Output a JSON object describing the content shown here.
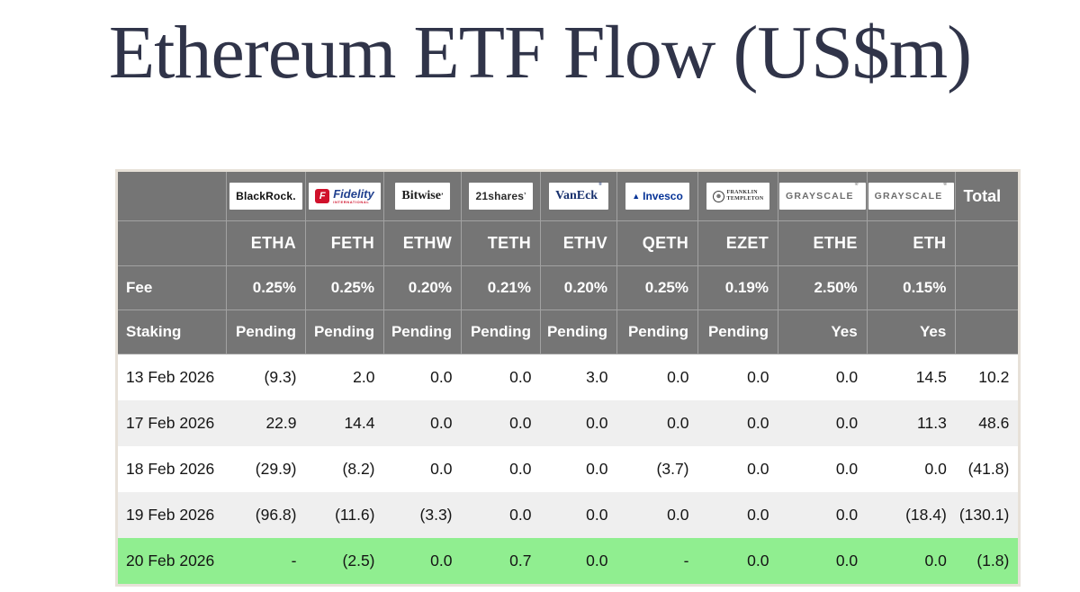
{
  "title": "Ethereum ETF Flow (US$m)",
  "colors": {
    "title_navy": "#303449",
    "header_gray": "#757575",
    "highlight_green": "#90ee90",
    "negative_red": "#ff0000",
    "stripe_gray": "#efefef",
    "table_border": "#e7e1d8",
    "fidelity_red": "#d0112b",
    "fidelity_blue": "#21418f",
    "vaneck_navy": "#18316e",
    "invesco_navy": "#063397",
    "grayscale_gray": "#6e6e6e"
  },
  "table": {
    "total_label": "Total",
    "fee_label": "Fee",
    "staking_label": "Staking",
    "columns": [
      {
        "provider": "BlackRock",
        "logo": "blackrock",
        "logo_text": "BlackRock.",
        "ticker": "ETHA",
        "fee": "0.25%",
        "staking": "Pending"
      },
      {
        "provider": "Fidelity International",
        "logo": "fidelity",
        "logo_text": "Fidelity",
        "logo_subtext": "INTERNATIONAL",
        "ticker": "FETH",
        "fee": "0.25%",
        "staking": "Pending"
      },
      {
        "provider": "Bitwise",
        "logo": "bitwise",
        "logo_text": "Bitwise",
        "ticker": "ETHW",
        "fee": "0.20%",
        "staking": "Pending"
      },
      {
        "provider": "21shares",
        "logo": "shares21",
        "logo_text": "21shares",
        "ticker": "TETH",
        "fee": "0.21%",
        "staking": "Pending"
      },
      {
        "provider": "VanEck",
        "logo": "vaneck",
        "logo_text": "VanEck",
        "ticker": "ETHV",
        "fee": "0.20%",
        "staking": "Pending"
      },
      {
        "provider": "Invesco",
        "logo": "invesco",
        "logo_text": "Invesco",
        "ticker": "QETH",
        "fee": "0.25%",
        "staking": "Pending"
      },
      {
        "provider": "Franklin Templeton",
        "logo": "franklin",
        "logo_line1": "FRANKLIN",
        "logo_line2": "TEMPLETON",
        "ticker": "EZET",
        "fee": "0.19%",
        "staking": "Pending"
      },
      {
        "provider": "Grayscale",
        "logo": "grayscale",
        "logo_text": "GRAYSCALE",
        "ticker": "ETHE",
        "fee": "2.50%",
        "staking": "Yes"
      },
      {
        "provider": "Grayscale",
        "logo": "grayscale",
        "logo_text": "GRAYSCALE",
        "ticker": "ETH",
        "fee": "0.15%",
        "staking": "Yes"
      }
    ],
    "rows": [
      {
        "date": "13 Feb 2026",
        "values": [
          "(9.3)",
          "2.0",
          "0.0",
          "0.0",
          "3.0",
          "0.0",
          "0.0",
          "0.0",
          "14.5"
        ],
        "total": "10.2",
        "highlight": false
      },
      {
        "date": "17 Feb 2026",
        "values": [
          "22.9",
          "14.4",
          "0.0",
          "0.0",
          "0.0",
          "0.0",
          "0.0",
          "0.0",
          "11.3"
        ],
        "total": "48.6",
        "highlight": false
      },
      {
        "date": "18 Feb 2026",
        "values": [
          "(29.9)",
          "(8.2)",
          "0.0",
          "0.0",
          "0.0",
          "(3.7)",
          "0.0",
          "0.0",
          "0.0"
        ],
        "total": "(41.8)",
        "highlight": false
      },
      {
        "date": "19 Feb 2026",
        "values": [
          "(96.8)",
          "(11.6)",
          "(3.3)",
          "0.0",
          "0.0",
          "0.0",
          "0.0",
          "0.0",
          "(18.4)"
        ],
        "total": "(130.1)",
        "highlight": false
      },
      {
        "date": "20 Feb 2026",
        "values": [
          "-",
          "(2.5)",
          "0.0",
          "0.7",
          "0.0",
          "-",
          "0.0",
          "0.0",
          "0.0"
        ],
        "total": "(1.8)",
        "highlight": true
      }
    ]
  },
  "chart_data": {
    "type": "table",
    "title": "Ethereum ETF Flow (US$m)",
    "columns": [
      "ETHA",
      "FETH",
      "ETHW",
      "TETH",
      "ETHV",
      "QETH",
      "EZET",
      "ETHE",
      "ETH",
      "Total"
    ],
    "providers": [
      "BlackRock",
      "Fidelity International",
      "Bitwise",
      "21shares",
      "VanEck",
      "Invesco",
      "Franklin Templeton",
      "Grayscale",
      "Grayscale",
      ""
    ],
    "fee_row": [
      "0.25%",
      "0.25%",
      "0.20%",
      "0.21%",
      "0.20%",
      "0.25%",
      "0.19%",
      "2.50%",
      "0.15%",
      ""
    ],
    "staking_row": [
      "Pending",
      "Pending",
      "Pending",
      "Pending",
      "Pending",
      "Pending",
      "Pending",
      "Yes",
      "Yes",
      ""
    ],
    "rows": [
      {
        "date": "13 Feb 2026",
        "values": [
          -9.3,
          2.0,
          0.0,
          0.0,
          3.0,
          0.0,
          0.0,
          0.0,
          14.5,
          10.2
        ]
      },
      {
        "date": "17 Feb 2026",
        "values": [
          22.9,
          14.4,
          0.0,
          0.0,
          0.0,
          0.0,
          0.0,
          0.0,
          11.3,
          48.6
        ]
      },
      {
        "date": "18 Feb 2026",
        "values": [
          -29.9,
          -8.2,
          0.0,
          0.0,
          0.0,
          -3.7,
          0.0,
          0.0,
          0.0,
          -41.8
        ]
      },
      {
        "date": "19 Feb 2026",
        "values": [
          -96.8,
          -11.6,
          -3.3,
          0.0,
          0.0,
          0.0,
          0.0,
          0.0,
          -18.4,
          -130.1
        ]
      },
      {
        "date": "20 Feb 2026",
        "values": [
          null,
          -2.5,
          0.0,
          0.7,
          0.0,
          null,
          0.0,
          0.0,
          0.0,
          -1.8
        ]
      }
    ]
  }
}
